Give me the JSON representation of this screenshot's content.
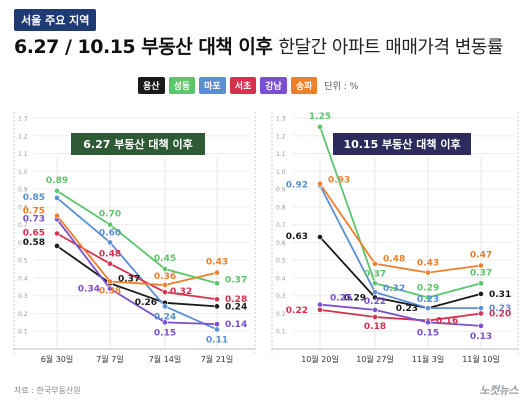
{
  "header": {
    "tag": "서울 주요 지역",
    "title_main": "6.27 / 10.15 부동산 대책 이후",
    "title_sub": "한달간 아파트 매매가격 변동률"
  },
  "legend": {
    "items": [
      {
        "name": "용산",
        "color": "#1a1a1a"
      },
      {
        "name": "성동",
        "color": "#5cc46a"
      },
      {
        "name": "마포",
        "color": "#5b8fd4"
      },
      {
        "name": "서초",
        "color": "#d6324f"
      },
      {
        "name": "강남",
        "color": "#7a4fd0"
      },
      {
        "name": "송파",
        "color": "#f07f2c"
      }
    ],
    "unit_label": "단위 : %"
  },
  "source": "자료 : 한국부동산원",
  "logo_text": "노컷뉴스",
  "chart_data": [
    {
      "type": "line",
      "label": "6.27 부동산 대책 이후",
      "label_bg": "#2f5a36",
      "ylim": [
        0,
        1.3
      ],
      "yticks": [
        "0.1",
        "0.2",
        "0.3",
        "0.4",
        "0.5",
        "0.6",
        "0.7",
        "0.8",
        "0.9",
        "1.0",
        "1.1",
        "1.2",
        "1.3"
      ],
      "categories": [
        "6월 30일",
        "7월 7일",
        "7월 14일",
        "7월 21일"
      ],
      "series": [
        {
          "name": "용산",
          "color": "#1a1a1a",
          "values": [
            0.58,
            0.37,
            0.26,
            0.24
          ]
        },
        {
          "name": "성동",
          "color": "#5cc46a",
          "values": [
            0.89,
            0.7,
            0.45,
            0.37
          ]
        },
        {
          "name": "마포",
          "color": "#5b8fd4",
          "values": [
            0.85,
            0.6,
            0.24,
            0.11
          ]
        },
        {
          "name": "서초",
          "color": "#d6324f",
          "values": [
            0.65,
            0.48,
            0.32,
            0.28
          ]
        },
        {
          "name": "강남",
          "color": "#7a4fd0",
          "values": [
            0.73,
            0.34,
            0.15,
            0.14
          ]
        },
        {
          "name": "송파",
          "color": "#f07f2c",
          "values": [
            0.75,
            0.38,
            0.36,
            0.43
          ]
        }
      ]
    },
    {
      "type": "line",
      "label": "10.15 부동산 대책 이후",
      "label_bg": "#2d2b5c",
      "ylim": [
        0,
        1.3
      ],
      "yticks": [
        "0.1",
        "0.2",
        "0.3",
        "0.4",
        "0.5",
        "0.6",
        "0.7",
        "0.8",
        "0.9",
        "1.0",
        "1.1",
        "1.2",
        "1.3"
      ],
      "categories": [
        "10월 20일",
        "10월 27일",
        "11월 3일",
        "11월 10일"
      ],
      "series": [
        {
          "name": "용산",
          "color": "#1a1a1a",
          "values": [
            0.63,
            0.29,
            0.23,
            0.31
          ]
        },
        {
          "name": "성동",
          "color": "#5cc46a",
          "values": [
            1.25,
            0.37,
            0.29,
            0.37
          ]
        },
        {
          "name": "마포",
          "color": "#5b8fd4",
          "values": [
            0.92,
            0.32,
            0.23,
            0.23
          ]
        },
        {
          "name": "서초",
          "color": "#d6324f",
          "values": [
            0.22,
            0.18,
            0.16,
            0.2
          ]
        },
        {
          "name": "강남",
          "color": "#7a4fd0",
          "values": [
            0.25,
            0.22,
            0.15,
            0.13
          ]
        },
        {
          "name": "송파",
          "color": "#f07f2c",
          "values": [
            0.93,
            0.48,
            0.43,
            0.47
          ]
        }
      ]
    }
  ]
}
